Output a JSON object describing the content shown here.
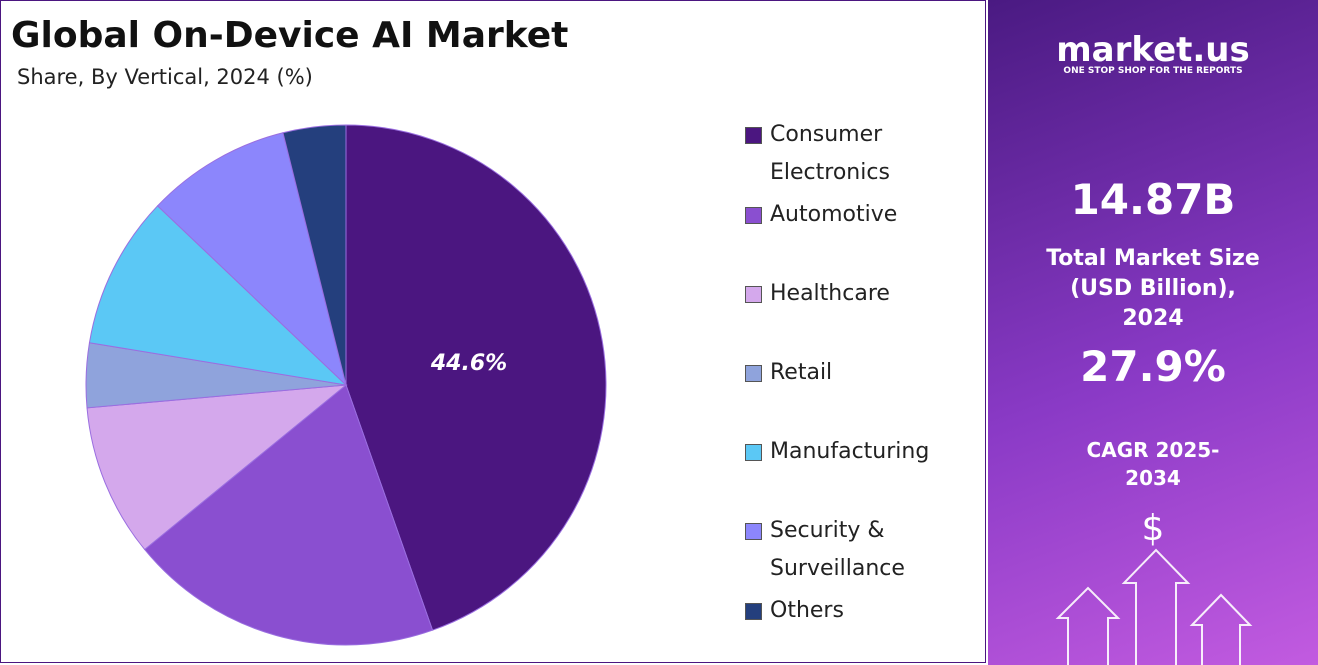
{
  "chart_data": {
    "type": "pie",
    "title": "Global On-Device AI Market",
    "subtitle": "Share, By Vertical, 2024 (%)",
    "categories": [
      "Consumer Electronics",
      "Automotive",
      "Healthcare",
      "Retail",
      "Manufacturing",
      "Security & Surveillance",
      "Others"
    ],
    "values": [
      44.6,
      19.5,
      9.5,
      4,
      9.5,
      9,
      3.9
    ],
    "value_labels": [
      "44.6%",
      null,
      null,
      null,
      null,
      null,
      null
    ],
    "colors": [
      "#4b1680",
      "#8a4fd0",
      "#d4a8ec",
      "#8fa3dc",
      "#5bc8f5",
      "#8c86fc",
      "#243f7d"
    ],
    "legend": "right"
  },
  "side_panel": {
    "brand": "market.us",
    "tagline": "ONE STOP SHOP FOR THE REPORTS",
    "market_size": "14.87B",
    "market_size_label": "Total Market Size (USD Billion), 2024",
    "cagr": "27.9%",
    "cagr_label": "CAGR 2025-2034",
    "icon": "$"
  }
}
